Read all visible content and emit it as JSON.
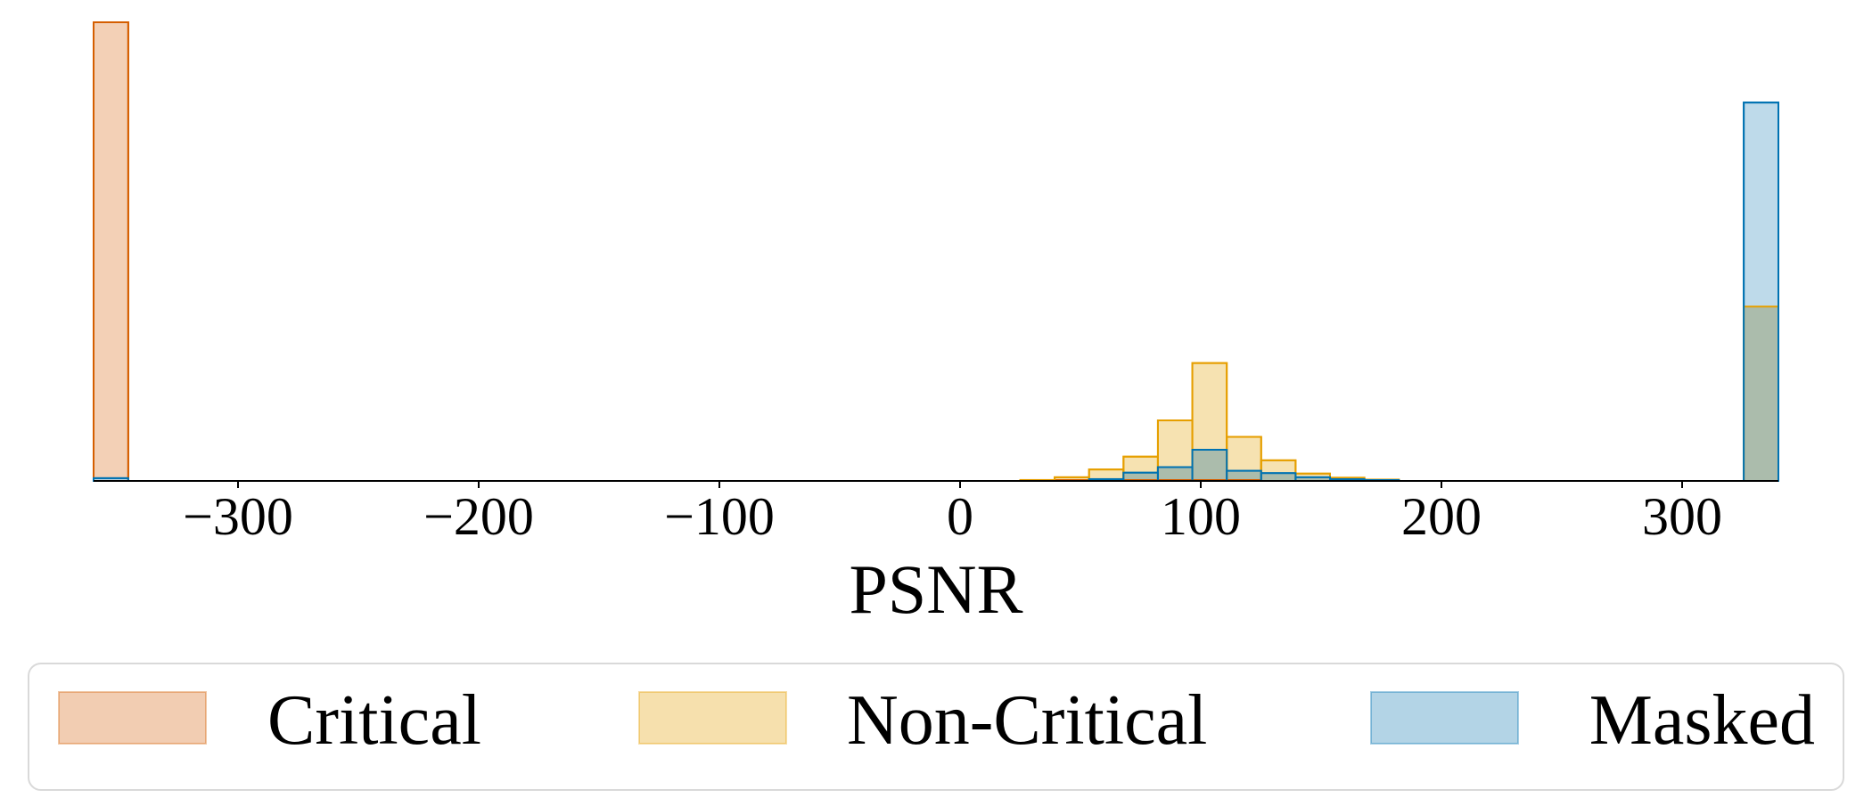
{
  "chart_data": {
    "type": "histogram",
    "xlabel": "PSNR",
    "xlim": [
      -360,
      340
    ],
    "ylim": [
      0,
      1
    ],
    "xticks": [
      -300,
      -200,
      -100,
      0,
      100,
      200,
      300
    ],
    "xtick_labels": [
      "−300",
      "−200",
      "−100",
      "0",
      "100",
      "200",
      "300"
    ],
    "grid": false,
    "legend_position": "bottom",
    "series": [
      {
        "name": "Critical",
        "fill": "#f2cdb2",
        "stroke": "#d55e00",
        "bins": [
          {
            "x0": -360,
            "x1": -345.6,
            "value": 1.0
          },
          {
            "x0": 25,
            "x1": 125,
            "value": 0.002
          }
        ]
      },
      {
        "name": "Non-Critical",
        "fill": "#f6e0ad",
        "stroke": "#e69f00",
        "bins": [
          {
            "x0": 25,
            "x1": 39.3,
            "value": 0.002
          },
          {
            "x0": 39.3,
            "x1": 53.6,
            "value": 0.008
          },
          {
            "x0": 53.6,
            "x1": 67.9,
            "value": 0.025
          },
          {
            "x0": 67.9,
            "x1": 82.2,
            "value": 0.053
          },
          {
            "x0": 82.2,
            "x1": 96.5,
            "value": 0.132
          },
          {
            "x0": 96.5,
            "x1": 110.8,
            "value": 0.257
          },
          {
            "x0": 110.8,
            "x1": 125.1,
            "value": 0.096
          },
          {
            "x0": 125.1,
            "x1": 139.4,
            "value": 0.045
          },
          {
            "x0": 139.4,
            "x1": 153.7,
            "value": 0.016
          },
          {
            "x0": 153.7,
            "x1": 168.0,
            "value": 0.007
          },
          {
            "x0": 168.0,
            "x1": 182.3,
            "value": 0.003
          },
          {
            "x0": 325.6,
            "x1": 340,
            "value": 0.38
          }
        ]
      },
      {
        "name": "Masked",
        "fill": "#b3d4e6",
        "stroke": "#0072b2",
        "bins": [
          {
            "x0": -360,
            "x1": -345.6,
            "value": 0.006
          },
          {
            "x0": 53.6,
            "x1": 67.9,
            "value": 0.004
          },
          {
            "x0": 67.9,
            "x1": 82.2,
            "value": 0.018
          },
          {
            "x0": 82.2,
            "x1": 96.5,
            "value": 0.03
          },
          {
            "x0": 96.5,
            "x1": 110.8,
            "value": 0.068
          },
          {
            "x0": 110.8,
            "x1": 125.1,
            "value": 0.022
          },
          {
            "x0": 125.1,
            "x1": 139.4,
            "value": 0.017
          },
          {
            "x0": 139.4,
            "x1": 153.7,
            "value": 0.008
          },
          {
            "x0": 153.7,
            "x1": 168.0,
            "value": 0.004
          },
          {
            "x0": 168.0,
            "x1": 182.3,
            "value": 0.002
          },
          {
            "x0": 325.6,
            "x1": 340,
            "value": 0.825
          }
        ]
      }
    ],
    "legend": {
      "items": [
        "Critical",
        "Non-Critical",
        "Masked"
      ]
    }
  }
}
